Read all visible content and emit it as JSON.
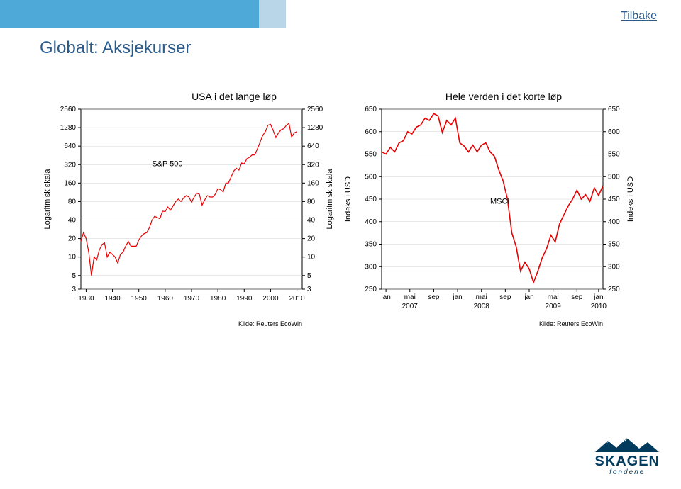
{
  "header": {
    "back_label": "Tilbake"
  },
  "title": "Globalt: Aksjekurser",
  "chart_left": {
    "title": "USA i det lange løp",
    "series_label": "S&P 500",
    "y_axis_label": "Logaritmisk skala",
    "source": "Kilde: Reuters EcoWin",
    "line_color": "#e80000",
    "text_color": "#000000",
    "grid_color": "#d0d0d0",
    "border_color": "#000000",
    "bg_color": "#ffffff",
    "font_size_label": 11,
    "font_size_tick": 10,
    "x_ticks": [
      "1930",
      "1940",
      "1950",
      "1960",
      "1970",
      "1980",
      "1990",
      "2000",
      "2010"
    ],
    "y_ticks": [
      3,
      5,
      10,
      20,
      40,
      80,
      160,
      320,
      640,
      1280,
      2560
    ],
    "line_width": 1.2,
    "series": [
      [
        1928,
        18
      ],
      [
        1929,
        25
      ],
      [
        1930,
        20
      ],
      [
        1931,
        12
      ],
      [
        1932,
        5
      ],
      [
        1933,
        10
      ],
      [
        1934,
        9
      ],
      [
        1935,
        13
      ],
      [
        1936,
        16
      ],
      [
        1937,
        17
      ],
      [
        1938,
        10
      ],
      [
        1939,
        12
      ],
      [
        1940,
        11
      ],
      [
        1941,
        10
      ],
      [
        1942,
        8
      ],
      [
        1943,
        11
      ],
      [
        1944,
        12
      ],
      [
        1945,
        15
      ],
      [
        1946,
        18
      ],
      [
        1947,
        15
      ],
      [
        1948,
        15
      ],
      [
        1949,
        15
      ],
      [
        1950,
        19
      ],
      [
        1951,
        22
      ],
      [
        1952,
        24
      ],
      [
        1953,
        25
      ],
      [
        1954,
        30
      ],
      [
        1955,
        40
      ],
      [
        1956,
        46
      ],
      [
        1957,
        44
      ],
      [
        1958,
        42
      ],
      [
        1959,
        56
      ],
      [
        1960,
        55
      ],
      [
        1961,
        65
      ],
      [
        1962,
        58
      ],
      [
        1963,
        68
      ],
      [
        1964,
        80
      ],
      [
        1965,
        88
      ],
      [
        1966,
        80
      ],
      [
        1967,
        92
      ],
      [
        1968,
        100
      ],
      [
        1969,
        95
      ],
      [
        1970,
        78
      ],
      [
        1971,
        95
      ],
      [
        1972,
        110
      ],
      [
        1973,
        105
      ],
      [
        1974,
        70
      ],
      [
        1975,
        85
      ],
      [
        1976,
        100
      ],
      [
        1977,
        95
      ],
      [
        1978,
        95
      ],
      [
        1979,
        105
      ],
      [
        1980,
        130
      ],
      [
        1981,
        125
      ],
      [
        1982,
        115
      ],
      [
        1983,
        160
      ],
      [
        1984,
        160
      ],
      [
        1985,
        200
      ],
      [
        1986,
        250
      ],
      [
        1987,
        280
      ],
      [
        1988,
        260
      ],
      [
        1989,
        340
      ],
      [
        1990,
        330
      ],
      [
        1991,
        400
      ],
      [
        1992,
        420
      ],
      [
        1993,
        460
      ],
      [
        1994,
        460
      ],
      [
        1995,
        580
      ],
      [
        1996,
        740
      ],
      [
        1997,
        950
      ],
      [
        1998,
        1100
      ],
      [
        1999,
        1400
      ],
      [
        2000,
        1450
      ],
      [
        2001,
        1150
      ],
      [
        2002,
        880
      ],
      [
        2003,
        1050
      ],
      [
        2004,
        1180
      ],
      [
        2005,
        1230
      ],
      [
        2006,
        1400
      ],
      [
        2007,
        1500
      ],
      [
        2008,
        900
      ],
      [
        2009,
        1050
      ],
      [
        2010,
        1100
      ]
    ]
  },
  "chart_right": {
    "title": "Hele verden i det korte løp",
    "series_label": "MSCI",
    "y_axis_label": "Indeks i USD",
    "source": "Kilde: Reuters EcoWin",
    "line_color": "#e80000",
    "text_color": "#000000",
    "grid_color": "#d0d0d0",
    "border_color": "#000000",
    "bg_color": "#ffffff",
    "font_size_label": 11,
    "font_size_tick": 10,
    "x_labels_top": [
      "jan",
      "mai",
      "sep",
      "jan",
      "mai",
      "sep",
      "jan",
      "mai",
      "sep",
      "jan"
    ],
    "x_labels_year": [
      "2007",
      "2008",
      "2009",
      "2010"
    ],
    "y_ticks": [
      250,
      300,
      350,
      400,
      450,
      500,
      550,
      600,
      650
    ],
    "line_width": 1.6,
    "series": [
      [
        0,
        555
      ],
      [
        2,
        550
      ],
      [
        4,
        565
      ],
      [
        6,
        555
      ],
      [
        8,
        575
      ],
      [
        10,
        580
      ],
      [
        12,
        600
      ],
      [
        14,
        595
      ],
      [
        16,
        610
      ],
      [
        18,
        615
      ],
      [
        20,
        630
      ],
      [
        22,
        625
      ],
      [
        24,
        640
      ],
      [
        26,
        635
      ],
      [
        28,
        598
      ],
      [
        30,
        625
      ],
      [
        32,
        615
      ],
      [
        34,
        630
      ],
      [
        36,
        575
      ],
      [
        38,
        568
      ],
      [
        40,
        555
      ],
      [
        42,
        570
      ],
      [
        44,
        555
      ],
      [
        46,
        570
      ],
      [
        48,
        575
      ],
      [
        50,
        555
      ],
      [
        52,
        545
      ],
      [
        54,
        515
      ],
      [
        56,
        490
      ],
      [
        58,
        450
      ],
      [
        60,
        375
      ],
      [
        62,
        345
      ],
      [
        64,
        290
      ],
      [
        66,
        310
      ],
      [
        68,
        295
      ],
      [
        70,
        265
      ],
      [
        72,
        290
      ],
      [
        74,
        320
      ],
      [
        76,
        340
      ],
      [
        78,
        370
      ],
      [
        80,
        355
      ],
      [
        82,
        395
      ],
      [
        84,
        415
      ],
      [
        86,
        435
      ],
      [
        88,
        450
      ],
      [
        90,
        470
      ],
      [
        92,
        450
      ],
      [
        94,
        460
      ],
      [
        96,
        445
      ],
      [
        98,
        475
      ],
      [
        100,
        458
      ],
      [
        102,
        480
      ]
    ]
  },
  "logo": {
    "brand": "SKAGEN",
    "tagline": "fondene"
  }
}
